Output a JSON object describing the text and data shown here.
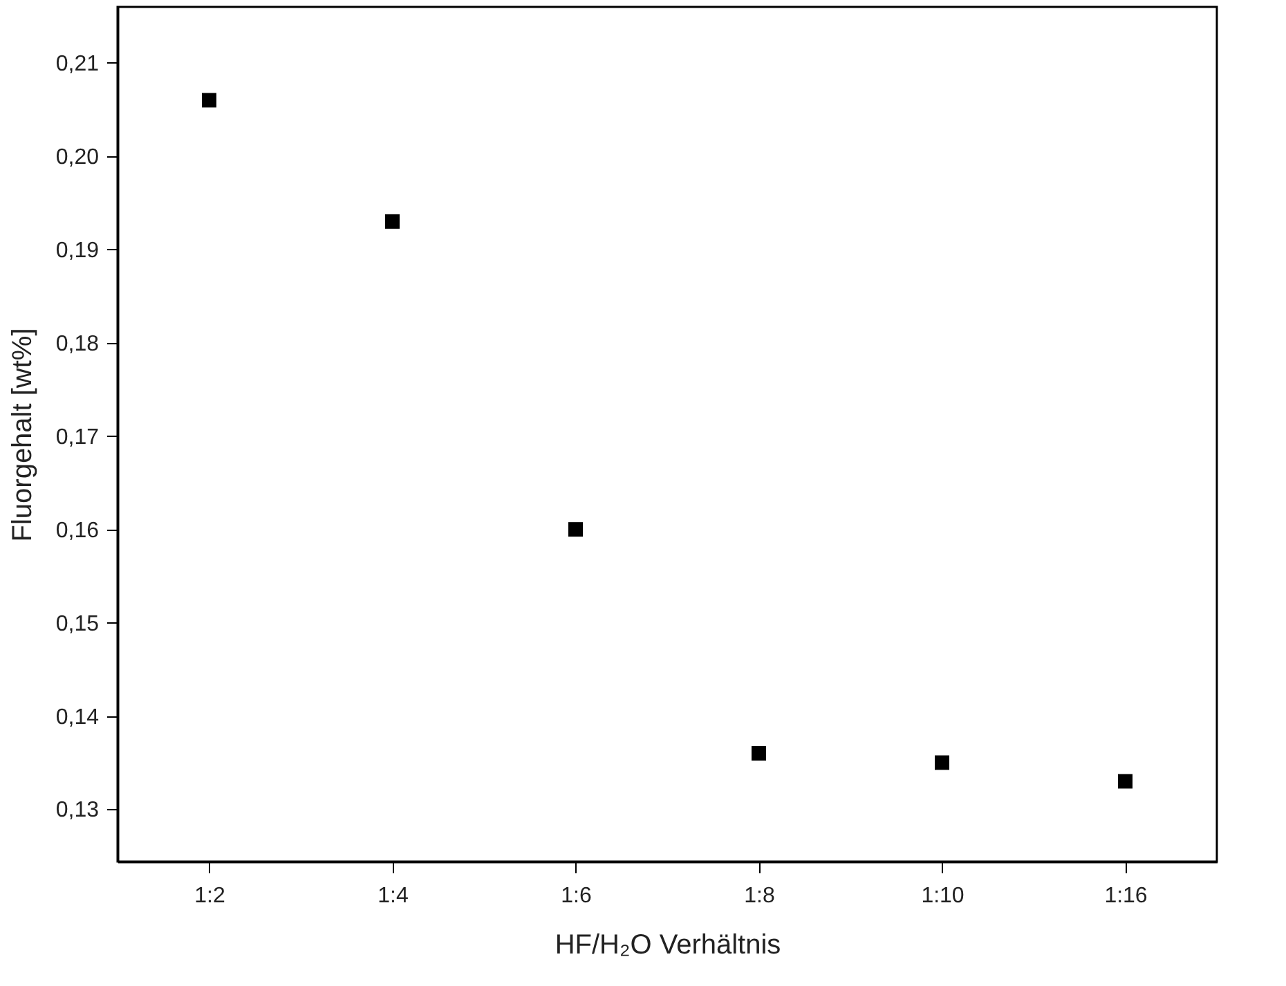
{
  "chart_data": {
    "type": "scatter",
    "xlabel": "HF/H₂O Verhältnis",
    "ylabel": "Fluorgehalt [wt%]",
    "categories": [
      "1:2",
      "1:4",
      "1:6",
      "1:8",
      "1:10",
      "1:16"
    ],
    "series": [
      {
        "color": "#000000",
        "values": [
          0.206,
          0.193,
          0.16,
          0.136,
          0.135,
          0.133
        ]
      }
    ],
    "ylim": [
      0.1244,
      0.216
    ],
    "yticks": [
      {
        "value": 0.13,
        "label": "0,13"
      },
      {
        "value": 0.14,
        "label": "0,14"
      },
      {
        "value": 0.15,
        "label": "0,15"
      },
      {
        "value": 0.16,
        "label": "0,16"
      },
      {
        "value": 0.17,
        "label": "0,17"
      },
      {
        "value": 0.18,
        "label": "0,18"
      },
      {
        "value": 0.19,
        "label": "0,19"
      },
      {
        "value": 0.2,
        "label": "0,20"
      },
      {
        "value": 0.21,
        "label": "0,21"
      }
    ],
    "marker": "square",
    "grid": false,
    "legend": false
  }
}
